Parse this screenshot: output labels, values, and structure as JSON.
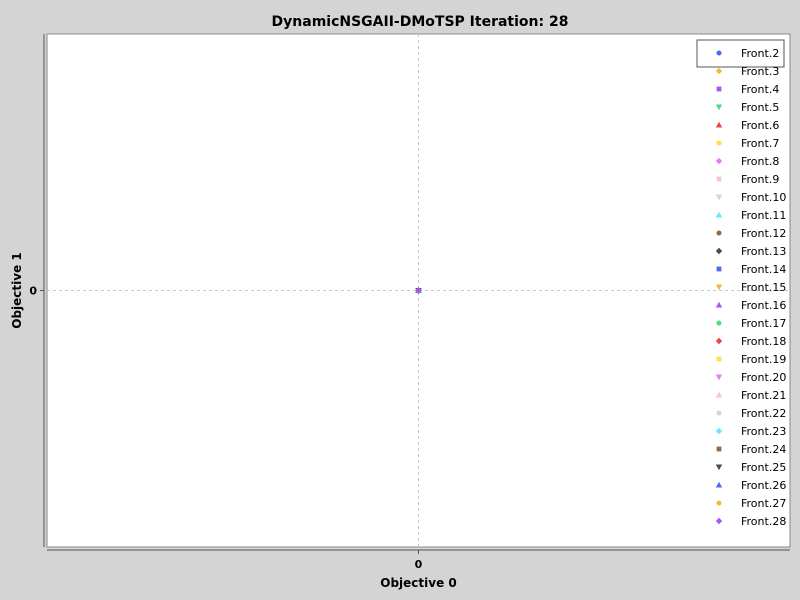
{
  "chart_data": {
    "type": "scatter",
    "title": "DynamicNSGAII-DMoTSP Iteration: 28",
    "xlabel": "Objective 0",
    "ylabel": "Objective 1",
    "xlim": [
      -1,
      1
    ],
    "ylim": [
      -1,
      1
    ],
    "x_ticks": [
      0
    ],
    "y_ticks": [
      0
    ],
    "grid": "dashed lines through ticks",
    "legend_position": "top-right",
    "series": [
      {
        "name": "Front.2",
        "marker": "circle",
        "color": "#4f6bed",
        "points": [
          [
            0,
            0
          ]
        ]
      },
      {
        "name": "Front.3",
        "marker": "diamond",
        "color": "#f5b942",
        "points": [
          [
            0,
            0
          ]
        ]
      },
      {
        "name": "Front.4",
        "marker": "square",
        "color": "#a855f7",
        "points": [
          [
            0,
            0
          ]
        ]
      },
      {
        "name": "Front.5",
        "marker": "triangle-down",
        "color": "#4ade80",
        "points": [
          [
            0,
            0
          ]
        ]
      },
      {
        "name": "Front.6",
        "marker": "triangle-up",
        "color": "#ef4444",
        "points": [
          [
            0,
            0
          ]
        ]
      },
      {
        "name": "Front.7",
        "marker": "circle",
        "color": "#fde047",
        "points": [
          [
            0,
            0
          ]
        ]
      },
      {
        "name": "Front.8",
        "marker": "diamond",
        "color": "#e879f9",
        "points": [
          [
            0,
            0
          ]
        ]
      },
      {
        "name": "Front.9",
        "marker": "square",
        "color": "#f9c4d2",
        "points": [
          [
            0,
            0
          ]
        ]
      },
      {
        "name": "Front.10",
        "marker": "triangle-down",
        "color": "#d4d4d8",
        "points": [
          [
            0,
            0
          ]
        ]
      },
      {
        "name": "Front.11",
        "marker": "triangle-up",
        "color": "#67e8f9",
        "points": [
          [
            0,
            0
          ]
        ]
      },
      {
        "name": "Front.12",
        "marker": "circle",
        "color": "#8b6b4a",
        "points": [
          [
            0,
            0
          ]
        ]
      },
      {
        "name": "Front.13",
        "marker": "diamond",
        "color": "#4b4b4b",
        "points": [
          [
            0,
            0
          ]
        ]
      },
      {
        "name": "Front.14",
        "marker": "square",
        "color": "#4f6bed",
        "points": [
          [
            0,
            0
          ]
        ]
      },
      {
        "name": "Front.15",
        "marker": "triangle-down",
        "color": "#f5b942",
        "points": [
          [
            0,
            0
          ]
        ]
      },
      {
        "name": "Front.16",
        "marker": "triangle-up",
        "color": "#a855f7",
        "points": [
          [
            0,
            0
          ]
        ]
      },
      {
        "name": "Front.17",
        "marker": "circle",
        "color": "#4ade80",
        "points": [
          [
            0,
            0
          ]
        ]
      },
      {
        "name": "Front.18",
        "marker": "diamond",
        "color": "#ef4444",
        "points": [
          [
            0,
            0
          ]
        ]
      },
      {
        "name": "Front.19",
        "marker": "square",
        "color": "#fde047",
        "points": [
          [
            0,
            0
          ]
        ]
      },
      {
        "name": "Front.20",
        "marker": "triangle-down",
        "color": "#e879f9",
        "points": [
          [
            0,
            0
          ]
        ]
      },
      {
        "name": "Front.21",
        "marker": "triangle-up",
        "color": "#f9c4d2",
        "points": [
          [
            0,
            0
          ]
        ]
      },
      {
        "name": "Front.22",
        "marker": "circle",
        "color": "#d4d4d8",
        "points": [
          [
            0,
            0
          ]
        ]
      },
      {
        "name": "Front.23",
        "marker": "diamond",
        "color": "#67e8f9",
        "points": [
          [
            0,
            0
          ]
        ]
      },
      {
        "name": "Front.24",
        "marker": "square",
        "color": "#8b6b4a",
        "points": [
          [
            0,
            0
          ]
        ]
      },
      {
        "name": "Front.25",
        "marker": "triangle-down",
        "color": "#4b4b4b",
        "points": [
          [
            0,
            0
          ]
        ]
      },
      {
        "name": "Front.26",
        "marker": "triangle-up",
        "color": "#4f6bed",
        "points": [
          [
            0,
            0
          ]
        ]
      },
      {
        "name": "Front.27",
        "marker": "circle",
        "color": "#f5b942",
        "points": [
          [
            0,
            0
          ]
        ]
      },
      {
        "name": "Front.28",
        "marker": "diamond",
        "color": "#a855f7",
        "points": [
          [
            0,
            0
          ]
        ]
      }
    ]
  }
}
